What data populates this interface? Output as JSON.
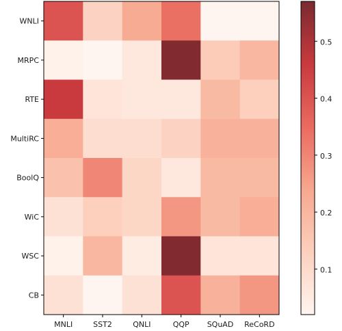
{
  "chart_data": {
    "type": "heatmap",
    "title": "",
    "xlabel": "",
    "ylabel": "",
    "x_categories": [
      "MNLI",
      "SST2",
      "QNLI",
      "QQP",
      "SQuAD",
      "ReCoRD"
    ],
    "y_categories": [
      "WNLI",
      "MRPC",
      "RTE",
      "MultiRC",
      "BoolQ",
      "WiC",
      "WSC",
      "CB"
    ],
    "values": [
      [
        0.4,
        0.12,
        0.23,
        0.34,
        0.02,
        0.02
      ],
      [
        0.03,
        0.02,
        0.06,
        0.56,
        0.14,
        0.2
      ],
      [
        0.46,
        0.07,
        0.06,
        0.06,
        0.19,
        0.13
      ],
      [
        0.22,
        0.09,
        0.09,
        0.12,
        0.21,
        0.21
      ],
      [
        0.17,
        0.3,
        0.11,
        0.06,
        0.19,
        0.19
      ],
      [
        0.08,
        0.13,
        0.11,
        0.27,
        0.19,
        0.22
      ],
      [
        0.03,
        0.2,
        0.05,
        0.56,
        0.07,
        0.07
      ],
      [
        0.08,
        0.02,
        0.08,
        0.4,
        0.21,
        0.27
      ]
    ],
    "colorbar": {
      "vmin": 0.02,
      "vmax": 0.57,
      "ticks": [
        0.1,
        0.2,
        0.3,
        0.4,
        0.5
      ],
      "tick_labels": [
        "0.1",
        "0.2",
        "0.3",
        "0.4",
        "0.5"
      ],
      "colormap": [
        "#fff5f0",
        "#fcd0bd",
        "#f7a78f",
        "#ea6a60",
        "#c93a3e",
        "#7a2a30"
      ]
    },
    "grid": false,
    "legend": "none"
  }
}
